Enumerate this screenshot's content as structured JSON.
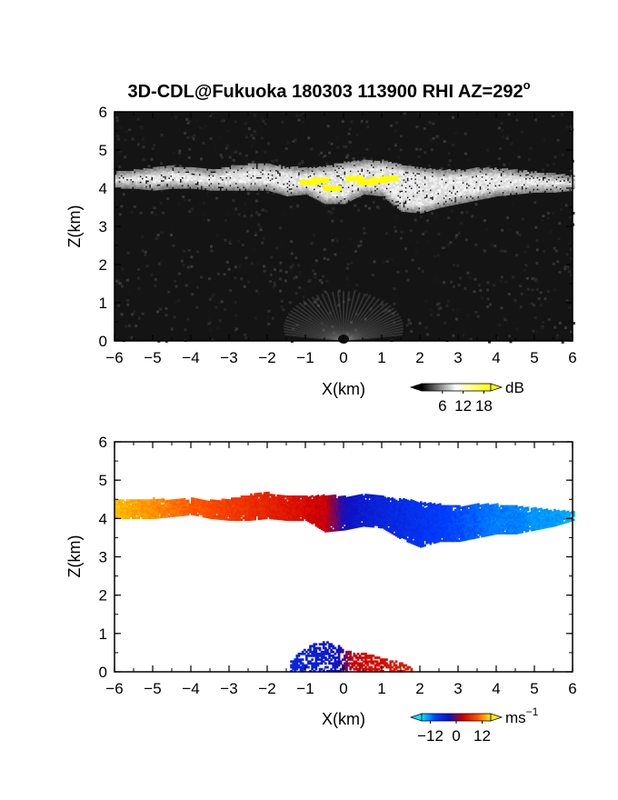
{
  "figure": {
    "title": "3D-CDL@Fukuoka 180303 113900 RHI AZ=292",
    "title_degree": "o"
  },
  "chart_data": [
    {
      "type": "heatmap",
      "name": "reflectivity-panel",
      "xlabel": "X(km)",
      "ylabel": "Z(km)",
      "xlim": [
        -6,
        6
      ],
      "ylim": [
        0,
        6
      ],
      "xticks": [
        "-6",
        "-5",
        "-4",
        "-3",
        "-2",
        "-1",
        "0",
        "1",
        "2",
        "3",
        "4",
        "5",
        "6"
      ],
      "yticks": [
        "0",
        "1",
        "2",
        "3",
        "4",
        "5",
        "6"
      ],
      "grid": false,
      "background_color": "#141414",
      "colorbar": {
        "unit": "dB",
        "ticks": [
          "6",
          "12",
          "18"
        ],
        "tick_values": [
          6,
          12,
          18
        ],
        "range": [
          0,
          20
        ],
        "colors": [
          "#000000",
          "#ffffff",
          "#ffff00"
        ]
      },
      "cloud_layer": {
        "x": [
          -6,
          -5.5,
          -5,
          -4.5,
          -4,
          -3.5,
          -3,
          -2.5,
          -2,
          -1.5,
          -1,
          -0.5,
          0,
          0.5,
          1,
          1.5,
          2,
          2.5,
          3,
          3.5,
          4,
          4.5,
          5,
          5.5,
          6
        ],
        "top_z": [
          4.4,
          4.45,
          4.5,
          4.55,
          4.5,
          4.45,
          4.55,
          4.6,
          4.6,
          4.55,
          4.5,
          4.55,
          4.65,
          4.7,
          4.7,
          4.6,
          4.5,
          4.45,
          4.45,
          4.5,
          4.5,
          4.45,
          4.4,
          4.35,
          4.3
        ],
        "base_z": [
          4.0,
          4.0,
          3.95,
          4.0,
          4.0,
          3.95,
          3.95,
          3.95,
          3.95,
          3.8,
          3.85,
          3.6,
          3.6,
          3.85,
          3.8,
          3.4,
          3.35,
          3.5,
          3.6,
          3.7,
          3.8,
          3.85,
          3.9,
          3.9,
          3.95
        ],
        "value_db": 12,
        "saturated_x": [
          -0.9,
          -0.6,
          -0.3,
          0.3,
          0.6,
          0.9,
          1.2
        ],
        "saturated_z": [
          4.15,
          4.2,
          4.0,
          4.25,
          4.15,
          4.2,
          4.25
        ]
      },
      "ground_clutter": {
        "x_range": [
          -2,
          2
        ],
        "z_top": 1.3,
        "value_db": 7
      }
    },
    {
      "type": "heatmap",
      "name": "doppler-velocity-panel",
      "xlabel": "X(km)",
      "ylabel": "Z(km)",
      "xlim": [
        -6,
        6
      ],
      "ylim": [
        0,
        6
      ],
      "xticks": [
        "-6",
        "-5",
        "-4",
        "-3",
        "-2",
        "-1",
        "0",
        "1",
        "2",
        "3",
        "4",
        "5",
        "6"
      ],
      "yticks": [
        "0",
        "1",
        "2",
        "3",
        "4",
        "5",
        "6"
      ],
      "grid": false,
      "background_color": "#ffffff",
      "colorbar": {
        "unit": "ms",
        "unit_exp": "−1",
        "ticks": [
          "−12",
          "0",
          "12"
        ],
        "tick_values": [
          -12,
          0,
          12
        ],
        "range": [
          -16,
          16
        ],
        "colors": [
          "#00e5ff",
          "#0040ff",
          "#1010c0",
          "#d00000",
          "#ff5000",
          "#ffee00"
        ]
      },
      "cloud_layer": {
        "x": [
          -6,
          -5.5,
          -5,
          -4.5,
          -4,
          -3.5,
          -3,
          -2.5,
          -2,
          -1.5,
          -1,
          -0.5,
          0,
          0.5,
          1,
          1.5,
          2,
          2.5,
          3,
          3.5,
          4,
          4.5,
          5,
          5.5,
          6
        ],
        "top_z": [
          4.45,
          4.45,
          4.5,
          4.45,
          4.5,
          4.45,
          4.5,
          4.6,
          4.65,
          4.55,
          4.55,
          4.6,
          4.55,
          4.6,
          4.55,
          4.5,
          4.4,
          4.35,
          4.3,
          4.35,
          4.35,
          4.3,
          4.25,
          4.2,
          4.15
        ],
        "base_z": [
          4.0,
          4.0,
          4.0,
          4.05,
          4.1,
          4.0,
          3.95,
          3.95,
          4.0,
          3.95,
          3.95,
          3.65,
          3.7,
          3.8,
          3.75,
          3.45,
          3.25,
          3.4,
          3.4,
          3.5,
          3.6,
          3.6,
          3.7,
          3.8,
          3.95
        ],
        "velocity_ms": [
          14,
          13,
          12,
          11,
          10,
          9,
          8,
          7,
          6,
          5,
          4,
          3,
          -3,
          -5,
          -6,
          -7,
          -8,
          -9,
          -10,
          -11,
          -12,
          -12,
          -13,
          -13,
          -14
        ]
      },
      "near_ground": {
        "x": [
          -1.4,
          -1.2,
          -1.0,
          -0.8,
          -0.6,
          -0.4,
          -0.2,
          0.2,
          0.4,
          0.6,
          0.8,
          1.0,
          1.2,
          1.4,
          1.6,
          1.8
        ],
        "top_z": [
          0.3,
          0.45,
          0.6,
          0.7,
          0.75,
          0.8,
          0.7,
          0.5,
          0.45,
          0.45,
          0.4,
          0.35,
          0.3,
          0.25,
          0.2,
          0.1
        ],
        "velocity_ms": [
          -6,
          -6,
          -6,
          -5,
          -5,
          -4,
          -4,
          3,
          3,
          4,
          4,
          4,
          5,
          5,
          5,
          5
        ]
      }
    }
  ]
}
